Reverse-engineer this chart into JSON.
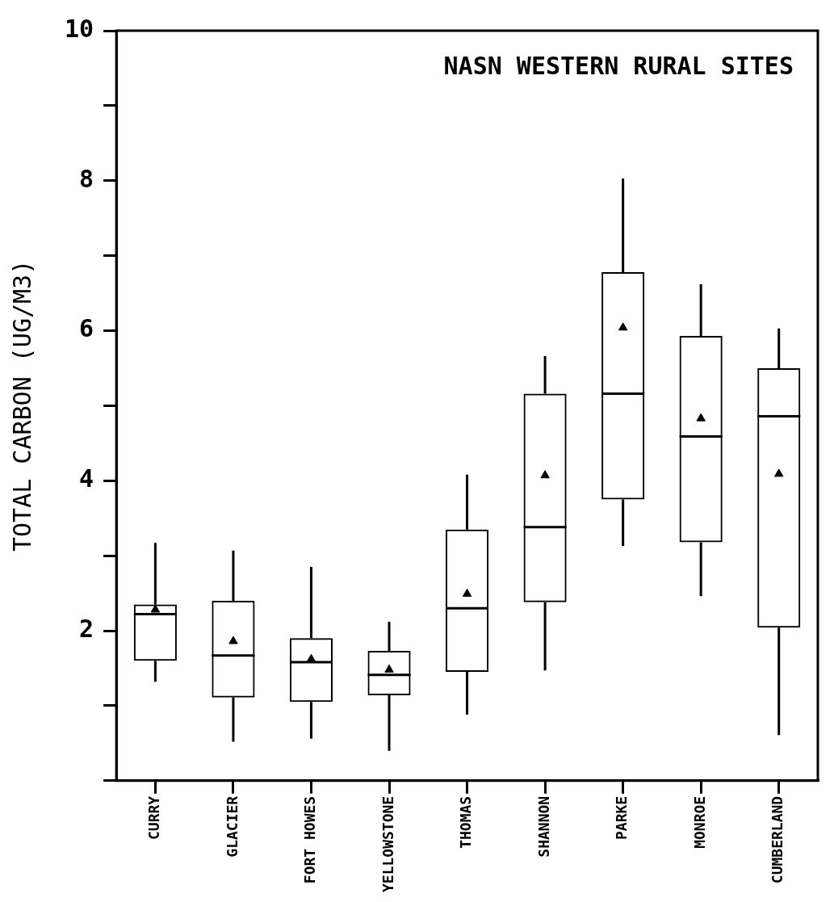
{
  "chart_data": {
    "type": "box",
    "title": "NASN WESTERN RURAL SITES",
    "ylabel": "TOTAL CARBON (UG/M3)",
    "categories": [
      "CURRY",
      "GLACIER",
      "FORT HOWES",
      "YELLOWSTONE",
      "THOMAS",
      "SHANNON",
      "PARKE",
      "MONROE",
      "CUMBERLAND"
    ],
    "boxes": [
      {
        "low": 1.32,
        "q1": 1.6,
        "median": 2.22,
        "q3": 2.35,
        "high": 3.17,
        "mean": 2.28
      },
      {
        "low": 0.52,
        "q1": 1.11,
        "median": 1.67,
        "q3": 2.4,
        "high": 3.07,
        "mean": 1.86
      },
      {
        "low": 0.56,
        "q1": 1.05,
        "median": 1.58,
        "q3": 1.9,
        "high": 2.85,
        "mean": 1.62
      },
      {
        "low": 0.4,
        "q1": 1.14,
        "median": 1.41,
        "q3": 1.73,
        "high": 2.12,
        "mean": 1.48
      },
      {
        "low": 0.88,
        "q1": 1.45,
        "median": 2.3,
        "q3": 3.35,
        "high": 4.08,
        "mean": 2.49
      },
      {
        "low": 1.47,
        "q1": 2.38,
        "median": 3.38,
        "q3": 5.16,
        "high": 5.66,
        "mean": 4.07
      },
      {
        "low": 3.13,
        "q1": 3.75,
        "median": 5.16,
        "q3": 6.78,
        "high": 8.03,
        "mean": 6.04
      },
      {
        "low": 2.46,
        "q1": 3.18,
        "median": 4.59,
        "q3": 5.93,
        "high": 6.62,
        "mean": 4.83
      },
      {
        "low": 0.61,
        "q1": 2.04,
        "median": 4.86,
        "q3": 5.5,
        "high": 6.03,
        "mean": 4.09
      }
    ],
    "marker": "triangle",
    "ylim": [
      0,
      10
    ],
    "yticks": [
      {
        "value": 0,
        "label": null
      },
      {
        "value": 1,
        "label": null
      },
      2,
      {
        "value": 3,
        "label": null
      },
      4,
      {
        "value": 5,
        "label": null
      },
      6,
      {
        "value": 7,
        "label": null
      },
      8,
      {
        "value": 9,
        "label": null
      },
      10
    ]
  }
}
